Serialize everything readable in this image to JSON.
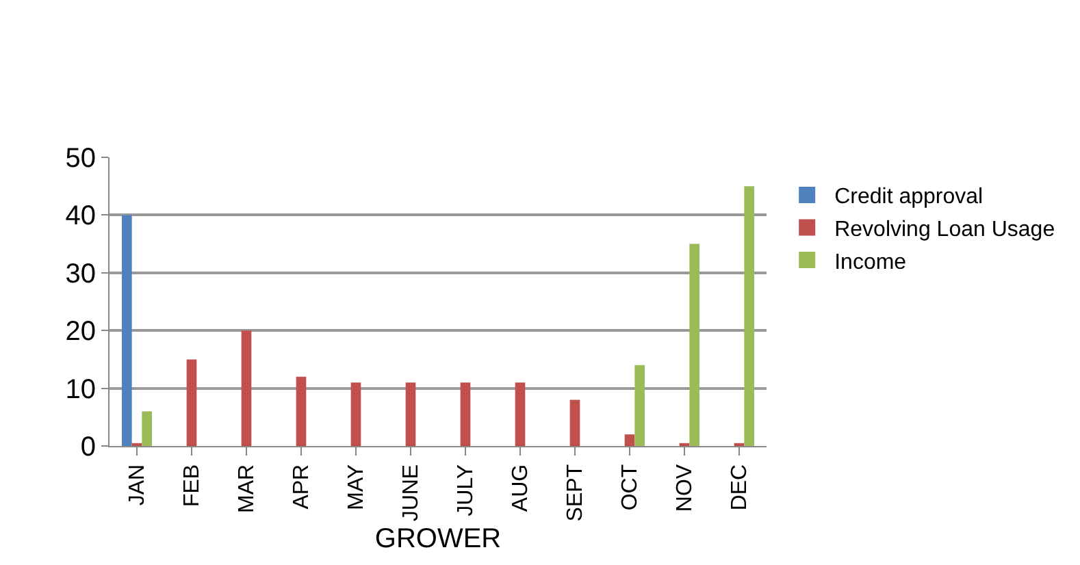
{
  "chart_data": {
    "type": "bar",
    "xlabel": "GROWER",
    "categories": [
      "JAN",
      "FEB",
      "MAR",
      "APR",
      "MAY",
      "JUNE",
      "JULY",
      "AUG",
      "SEPT",
      "OCT",
      "NOV",
      "DEC"
    ],
    "series": [
      {
        "name": "Credit approval",
        "color": "#4f81bd",
        "values": [
          40,
          0,
          0,
          0,
          0,
          0,
          0,
          0,
          0,
          0,
          0,
          0
        ]
      },
      {
        "name": "Revolving Loan Usage",
        "color": "#c0504d",
        "values": [
          0.5,
          15,
          20,
          12,
          11,
          11,
          11,
          11,
          8,
          2,
          0.5,
          0.5
        ]
      },
      {
        "name": "Income",
        "color": "#9bbb59",
        "values": [
          6,
          0,
          0,
          0,
          0,
          0,
          0,
          0,
          0,
          14,
          35,
          45
        ]
      }
    ],
    "ylim": [
      0,
      50
    ],
    "yticks": [
      0,
      10,
      20,
      30,
      40,
      50
    ],
    "grid": "y",
    "legend": "right"
  }
}
